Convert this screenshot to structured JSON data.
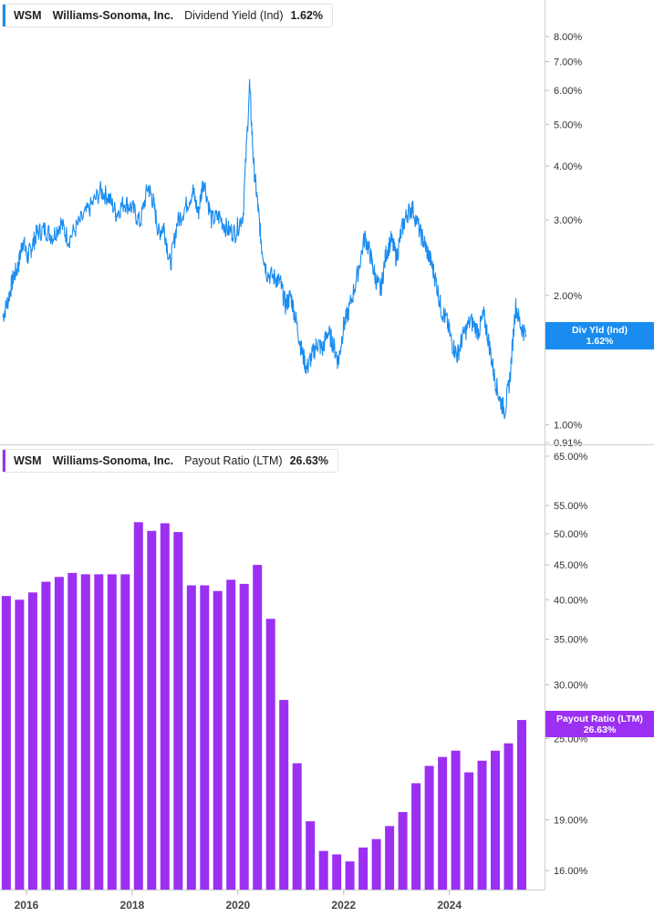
{
  "panels": [
    {
      "ticker": "WSM",
      "company": "Williams-Sonoma, Inc.",
      "metric": "Dividend Yield (Ind)",
      "current_value": "1.62%",
      "flag_label": "Div Yld (Ind)",
      "flag_value": "1.62%",
      "color": "#1a8cf0"
    },
    {
      "ticker": "WSM",
      "company": "Williams-Sonoma, Inc.",
      "metric": "Payout Ratio (LTM)",
      "current_value": "26.63%",
      "flag_label": "Payout Ratio (LTM)",
      "flag_value": "26.63%",
      "color": "#9b30f2"
    }
  ],
  "chart_data": [
    {
      "type": "line",
      "scale": "log",
      "series": [
        {
          "name": "Dividend Yield (Ind)",
          "points": [
            [
              2015.55,
              1.78
            ],
            [
              2015.65,
              1.95
            ],
            [
              2015.75,
              2.2
            ],
            [
              2015.85,
              2.35
            ],
            [
              2015.93,
              2.7
            ],
            [
              2016.02,
              2.45
            ],
            [
              2016.1,
              2.6
            ],
            [
              2016.2,
              2.8
            ],
            [
              2016.35,
              2.85
            ],
            [
              2016.5,
              2.75
            ],
            [
              2016.65,
              2.95
            ],
            [
              2016.8,
              2.7
            ],
            [
              2017.0,
              2.95
            ],
            [
              2017.2,
              3.2
            ],
            [
              2017.4,
              3.5
            ],
            [
              2017.55,
              3.4
            ],
            [
              2017.7,
              3.1
            ],
            [
              2017.85,
              3.3
            ],
            [
              2018.0,
              3.2
            ],
            [
              2018.15,
              2.95
            ],
            [
              2018.3,
              3.6
            ],
            [
              2018.4,
              3.3
            ],
            [
              2018.5,
              2.8
            ],
            [
              2018.6,
              2.9
            ],
            [
              2018.72,
              2.35
            ],
            [
              2018.85,
              2.95
            ],
            [
              2019.0,
              3.2
            ],
            [
              2019.15,
              3.5
            ],
            [
              2019.25,
              3.1
            ],
            [
              2019.35,
              3.75
            ],
            [
              2019.5,
              3.0
            ],
            [
              2019.65,
              3.05
            ],
            [
              2019.8,
              2.85
            ],
            [
              2019.95,
              2.8
            ],
            [
              2020.1,
              3.1
            ],
            [
              2020.22,
              6.2
            ],
            [
              2020.3,
              4.0
            ],
            [
              2020.38,
              3.2
            ],
            [
              2020.45,
              2.6
            ],
            [
              2020.55,
              2.25
            ],
            [
              2020.7,
              2.2
            ],
            [
              2020.8,
              2.15
            ],
            [
              2020.9,
              1.9
            ],
            [
              2021.0,
              2.0
            ],
            [
              2021.1,
              1.75
            ],
            [
              2021.2,
              1.5
            ],
            [
              2021.3,
              1.35
            ],
            [
              2021.4,
              1.45
            ],
            [
              2021.5,
              1.55
            ],
            [
              2021.6,
              1.5
            ],
            [
              2021.7,
              1.65
            ],
            [
              2021.8,
              1.55
            ],
            [
              2021.9,
              1.4
            ],
            [
              2022.0,
              1.7
            ],
            [
              2022.1,
              1.85
            ],
            [
              2022.25,
              2.2
            ],
            [
              2022.4,
              2.75
            ],
            [
              2022.5,
              2.5
            ],
            [
              2022.6,
              2.2
            ],
            [
              2022.7,
              2.05
            ],
            [
              2022.8,
              2.5
            ],
            [
              2022.9,
              2.7
            ],
            [
              2023.0,
              2.45
            ],
            [
              2023.1,
              2.85
            ],
            [
              2023.2,
              3.1
            ],
            [
              2023.3,
              3.2
            ],
            [
              2023.45,
              2.8
            ],
            [
              2023.55,
              2.6
            ],
            [
              2023.65,
              2.4
            ],
            [
              2023.75,
              2.15
            ],
            [
              2023.85,
              1.85
            ],
            [
              2023.95,
              1.75
            ],
            [
              2024.05,
              1.55
            ],
            [
              2024.15,
              1.45
            ],
            [
              2024.25,
              1.6
            ],
            [
              2024.4,
              1.75
            ],
            [
              2024.55,
              1.65
            ],
            [
              2024.65,
              1.8
            ],
            [
              2024.75,
              1.55
            ],
            [
              2024.85,
              1.3
            ],
            [
              2024.95,
              1.15
            ],
            [
              2025.05,
              1.08
            ],
            [
              2025.15,
              1.3
            ],
            [
              2025.25,
              1.9
            ],
            [
              2025.35,
              1.7
            ],
            [
              2025.45,
              1.62
            ]
          ]
        }
      ],
      "y_ticks": [
        "8.00%",
        "7.00%",
        "6.00%",
        "5.00%",
        "4.00%",
        "3.00%",
        "2.00%",
        "1.00%",
        "0.91%"
      ],
      "ylim": [
        0.91,
        9.5
      ],
      "xlim": [
        2015.5,
        2025.8
      ]
    },
    {
      "type": "bar",
      "scale": "log",
      "series": [
        {
          "name": "Payout Ratio (LTM)",
          "x": [
            2015.55,
            2015.8,
            2016.05,
            2016.3,
            2016.55,
            2016.8,
            2017.05,
            2017.3,
            2017.55,
            2017.8,
            2018.05,
            2018.3,
            2018.55,
            2018.8,
            2019.05,
            2019.3,
            2019.55,
            2019.8,
            2020.05,
            2020.3,
            2020.55,
            2020.8,
            2021.05,
            2021.3,
            2021.55,
            2021.8,
            2022.05,
            2022.3,
            2022.55,
            2022.8,
            2023.05,
            2023.3,
            2023.55,
            2023.8,
            2024.05,
            2024.3,
            2024.55,
            2024.8,
            2025.05,
            2025.3
          ],
          "values": [
            40.5,
            40.0,
            41.0,
            42.5,
            43.2,
            43.8,
            43.6,
            43.6,
            43.6,
            43.6,
            52.0,
            50.5,
            51.8,
            50.3,
            42.0,
            42.0,
            41.2,
            42.8,
            42.2,
            45.0,
            37.5,
            28.5,
            23.0,
            18.9,
            17.1,
            16.9,
            16.5,
            17.3,
            17.8,
            18.6,
            19.5,
            21.5,
            22.8,
            23.5,
            24.0,
            22.3,
            23.2,
            24.0,
            24.6,
            26.63
          ]
        }
      ],
      "y_ticks": [
        "65.00%",
        "55.00%",
        "50.00%",
        "45.00%",
        "40.00%",
        "35.00%",
        "30.00%",
        "25.00%",
        "19.00%",
        "16.00%"
      ],
      "ylim": [
        15.0,
        65.0
      ],
      "xlim": [
        2015.5,
        2025.8
      ]
    }
  ],
  "x_axis": {
    "ticks": [
      "2016",
      "2018",
      "2020",
      "2022",
      "2024"
    ]
  }
}
